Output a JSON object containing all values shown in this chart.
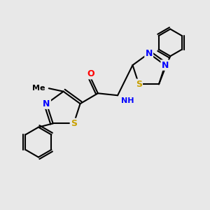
{
  "bg_color": "#e8e8e8",
  "bond_color": "#000000",
  "atom_colors": {
    "S": "#c8a000",
    "N": "#0000ff",
    "O": "#ff0000",
    "C": "#000000",
    "H": "#000000"
  },
  "figsize": [
    3.0,
    3.0
  ],
  "dpi": 100
}
